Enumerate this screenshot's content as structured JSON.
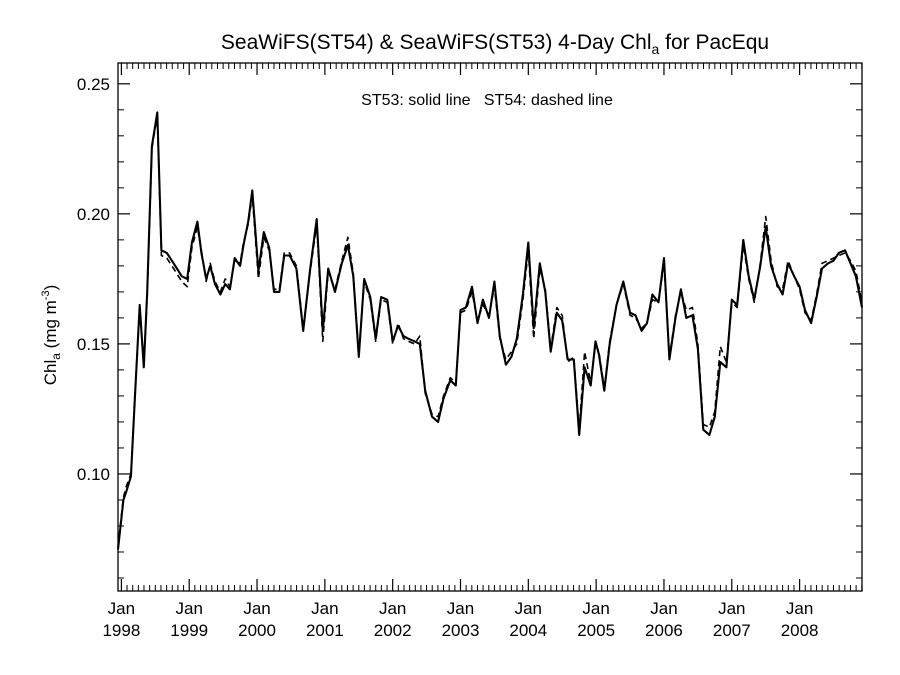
{
  "chart_data": {
    "type": "line",
    "title": "SeaWiFS(ST54) & SeaWiFS(ST53) 4-Day Chl",
    "title_subscript": "a",
    "title_suffix": " for PacEqu",
    "ylabel": "Chl",
    "ylabel_subscript": "a",
    "ylabel_units": " (mg m",
    "ylabel_units_sup": "-3",
    "ylabel_units_close": ")",
    "annotation": "ST53: solid line   ST54: dashed line",
    "ylim": [
      0.055,
      0.258
    ],
    "xlim": [
      1997.95,
      2008.92
    ],
    "yticks": [
      0.1,
      0.15,
      0.2,
      0.25
    ],
    "ytick_labels": [
      "0.10",
      "0.15",
      "0.20",
      "0.25"
    ],
    "xticks": [
      1998.0,
      1999.0,
      2000.0,
      2001.0,
      2002.0,
      2003.0,
      2004.0,
      2005.0,
      2006.0,
      2007.0,
      2008.0
    ],
    "xtick_labels": [
      {
        "month": "Jan",
        "year": "1998"
      },
      {
        "month": "Jan",
        "year": "1999"
      },
      {
        "month": "Jan",
        "year": "2000"
      },
      {
        "month": "Jan",
        "year": "2001"
      },
      {
        "month": "Jan",
        "year": "2002"
      },
      {
        "month": "Jan",
        "year": "2003"
      },
      {
        "month": "Jan",
        "year": "2004"
      },
      {
        "month": "Jan",
        "year": "2005"
      },
      {
        "month": "Jan",
        "year": "2006"
      },
      {
        "month": "Jan",
        "year": "2007"
      },
      {
        "month": "Jan",
        "year": "2008"
      }
    ],
    "grid": false,
    "series": [
      {
        "name": "ST53",
        "style": "solid",
        "color": "#000000",
        "x": [
          1997.95,
          1998.03,
          1998.07,
          1998.14,
          1998.2,
          1998.27,
          1998.33,
          1998.38,
          1998.45,
          1998.53,
          1998.59,
          1998.67,
          1998.77,
          1998.89,
          1998.97,
          1999.04,
          1999.12,
          1999.18,
          1999.25,
          1999.31,
          1999.38,
          1999.46,
          1999.53,
          1999.6,
          1999.67,
          1999.75,
          1999.8,
          1999.87,
          1999.93,
          2000.02,
          2000.1,
          2000.18,
          2000.25,
          2000.33,
          2000.4,
          2000.48,
          2000.58,
          2000.68,
          2000.78,
          2000.88,
          2000.97,
          2001.05,
          2001.15,
          2001.25,
          2001.34,
          2001.42,
          2001.5,
          2001.58,
          2001.67,
          2001.75,
          2001.83,
          2001.92,
          2002.0,
          2002.08,
          2002.16,
          2002.23,
          2002.32,
          2002.4,
          2002.48,
          2002.58,
          2002.67,
          2002.75,
          2002.85,
          2002.93,
          2003.0,
          2003.08,
          2003.17,
          2003.25,
          2003.33,
          2003.42,
          2003.5,
          2003.58,
          2003.67,
          2003.75,
          2003.83,
          2003.92,
          2004.0,
          2004.08,
          2004.17,
          2004.25,
          2004.33,
          2004.42,
          2004.5,
          2004.58,
          2004.67,
          2004.75,
          2004.83,
          2004.92,
          2004.99,
          2005.04,
          2005.12,
          2005.2,
          2005.3,
          2005.4,
          2005.5,
          2005.58,
          2005.67,
          2005.75,
          2005.83,
          2005.92,
          2006.0,
          2006.08,
          2006.17,
          2006.25,
          2006.33,
          2006.42,
          2006.5,
          2006.58,
          2006.67,
          2006.75,
          2006.83,
          2006.92,
          2007.0,
          2007.08,
          2007.17,
          2007.25,
          2007.33,
          2007.42,
          2007.5,
          2007.58,
          2007.67,
          2007.75,
          2007.83,
          2007.92,
          2008.0,
          2008.08,
          2008.17,
          2008.25,
          2008.33,
          2008.42,
          2008.5,
          2008.58,
          2008.67,
          2008.75,
          2008.83,
          2008.92
        ],
        "y": [
          0.071,
          0.09,
          0.093,
          0.099,
          0.13,
          0.165,
          0.141,
          0.17,
          0.226,
          0.239,
          0.186,
          0.185,
          0.181,
          0.176,
          0.175,
          0.189,
          0.197,
          0.185,
          0.175,
          0.18,
          0.173,
          0.169,
          0.173,
          0.171,
          0.183,
          0.18,
          0.188,
          0.197,
          0.209,
          0.178,
          0.193,
          0.187,
          0.17,
          0.17,
          0.184,
          0.184,
          0.179,
          0.155,
          0.178,
          0.198,
          0.155,
          0.179,
          0.17,
          0.181,
          0.188,
          0.176,
          0.145,
          0.175,
          0.168,
          0.152,
          0.168,
          0.167,
          0.151,
          0.157,
          0.153,
          0.152,
          0.151,
          0.15,
          0.132,
          0.122,
          0.12,
          0.129,
          0.136,
          0.134,
          0.163,
          0.164,
          0.172,
          0.158,
          0.167,
          0.16,
          0.174,
          0.153,
          0.142,
          0.145,
          0.152,
          0.169,
          0.189,
          0.156,
          0.181,
          0.17,
          0.147,
          0.162,
          0.159,
          0.144,
          0.144,
          0.115,
          0.141,
          0.134,
          0.151,
          0.146,
          0.132,
          0.15,
          0.165,
          0.174,
          0.162,
          0.161,
          0.155,
          0.158,
          0.169,
          0.166,
          0.183,
          0.144,
          0.16,
          0.171,
          0.16,
          0.161,
          0.148,
          0.117,
          0.115,
          0.122,
          0.143,
          0.141,
          0.167,
          0.165,
          0.19,
          0.176,
          0.167,
          0.18,
          0.195,
          0.18,
          0.173,
          0.169,
          0.181,
          0.176,
          0.172,
          0.163,
          0.158,
          0.168,
          0.179,
          0.181,
          0.182,
          0.185,
          0.186,
          0.181,
          0.176,
          0.164
        ]
      },
      {
        "name": "ST54",
        "style": "dashed",
        "color": "#000000",
        "x": [
          1997.95,
          1998.03,
          1998.07,
          1998.14,
          1998.2,
          1998.27,
          1998.33,
          1998.38,
          1998.45,
          1998.53,
          1998.59,
          1998.67,
          1998.77,
          1998.89,
          1998.97,
          1999.04,
          1999.12,
          1999.18,
          1999.25,
          1999.31,
          1999.38,
          1999.46,
          1999.53,
          1999.6,
          1999.67,
          1999.75,
          1999.8,
          1999.87,
          1999.93,
          2000.02,
          2000.1,
          2000.18,
          2000.25,
          2000.33,
          2000.4,
          2000.48,
          2000.58,
          2000.68,
          2000.78,
          2000.88,
          2000.97,
          2001.05,
          2001.15,
          2001.25,
          2001.34,
          2001.42,
          2001.5,
          2001.58,
          2001.67,
          2001.75,
          2001.83,
          2001.92,
          2002.0,
          2002.08,
          2002.16,
          2002.23,
          2002.32,
          2002.4,
          2002.48,
          2002.58,
          2002.67,
          2002.75,
          2002.85,
          2002.93,
          2003.0,
          2003.08,
          2003.17,
          2003.25,
          2003.33,
          2003.42,
          2003.5,
          2003.58,
          2003.67,
          2003.75,
          2003.83,
          2003.92,
          2004.0,
          2004.08,
          2004.17,
          2004.25,
          2004.33,
          2004.42,
          2004.5,
          2004.58,
          2004.67,
          2004.75,
          2004.83,
          2004.92,
          2004.99,
          2005.04,
          2005.12,
          2005.2,
          2005.3,
          2005.4,
          2005.5,
          2005.58,
          2005.67,
          2005.75,
          2005.83,
          2005.92,
          2006.0,
          2006.08,
          2006.17,
          2006.25,
          2006.33,
          2006.42,
          2006.5,
          2006.58,
          2006.67,
          2006.75,
          2006.83,
          2006.92,
          2007.0,
          2007.08,
          2007.17,
          2007.25,
          2007.33,
          2007.42,
          2007.5,
          2007.58,
          2007.67,
          2007.75,
          2007.83,
          2007.92,
          2008.0,
          2008.08,
          2008.17,
          2008.25,
          2008.33,
          2008.42,
          2008.5,
          2008.58,
          2008.67,
          2008.75,
          2008.83,
          2008.92
        ],
        "y": [
          0.072,
          0.091,
          0.095,
          0.1,
          0.132,
          0.163,
          0.142,
          0.168,
          0.225,
          0.238,
          0.184,
          0.183,
          0.179,
          0.174,
          0.172,
          0.187,
          0.195,
          0.186,
          0.174,
          0.181,
          0.174,
          0.17,
          0.175,
          0.172,
          0.182,
          0.181,
          0.189,
          0.196,
          0.207,
          0.175,
          0.191,
          0.186,
          0.171,
          0.171,
          0.185,
          0.185,
          0.18,
          0.156,
          0.177,
          0.196,
          0.151,
          0.178,
          0.171,
          0.182,
          0.191,
          0.177,
          0.146,
          0.174,
          0.167,
          0.151,
          0.167,
          0.166,
          0.15,
          0.158,
          0.152,
          0.151,
          0.15,
          0.153,
          0.131,
          0.123,
          0.122,
          0.13,
          0.137,
          0.135,
          0.162,
          0.163,
          0.17,
          0.159,
          0.165,
          0.161,
          0.172,
          0.152,
          0.144,
          0.147,
          0.15,
          0.167,
          0.186,
          0.152,
          0.179,
          0.171,
          0.148,
          0.164,
          0.161,
          0.143,
          0.145,
          0.117,
          0.147,
          0.135,
          0.15,
          0.147,
          0.133,
          0.151,
          0.165,
          0.173,
          0.161,
          0.16,
          0.156,
          0.158,
          0.167,
          0.166,
          0.181,
          0.145,
          0.161,
          0.17,
          0.163,
          0.164,
          0.15,
          0.119,
          0.118,
          0.124,
          0.149,
          0.143,
          0.166,
          0.164,
          0.188,
          0.175,
          0.166,
          0.181,
          0.199,
          0.182,
          0.172,
          0.171,
          0.182,
          0.176,
          0.171,
          0.162,
          0.159,
          0.169,
          0.181,
          0.182,
          0.183,
          0.184,
          0.185,
          0.182,
          0.178,
          0.166
        ]
      }
    ]
  }
}
